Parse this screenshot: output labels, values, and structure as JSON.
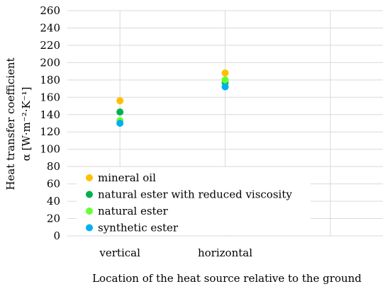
{
  "chart_data": {
    "type": "scatter",
    "categories": [
      "vertical",
      "horizontal"
    ],
    "series": [
      {
        "name": "mineral oil",
        "color": "#FFC000",
        "values": [
          156,
          188
        ]
      },
      {
        "name": "natural ester with reduced viscosity",
        "color": "#00B050",
        "values": [
          143,
          177
        ]
      },
      {
        "name": "natural ester",
        "color": "#66FF33",
        "values": [
          133,
          180
        ]
      },
      {
        "name": "synthetic ester",
        "color": "#00B0F0",
        "values": [
          130,
          172
        ]
      }
    ],
    "xlabel": "Location of the heat source relative to the ground",
    "ylabel_line1": "Heat transfer coefficient",
    "ylabel_line2": "α [W·m⁻²·K⁻¹]",
    "ylim": [
      0,
      260
    ],
    "yticks": [
      0,
      20,
      40,
      60,
      80,
      100,
      120,
      140,
      160,
      180,
      200,
      220,
      240,
      260
    ],
    "grid": true,
    "legend_position": "bottom-left"
  }
}
